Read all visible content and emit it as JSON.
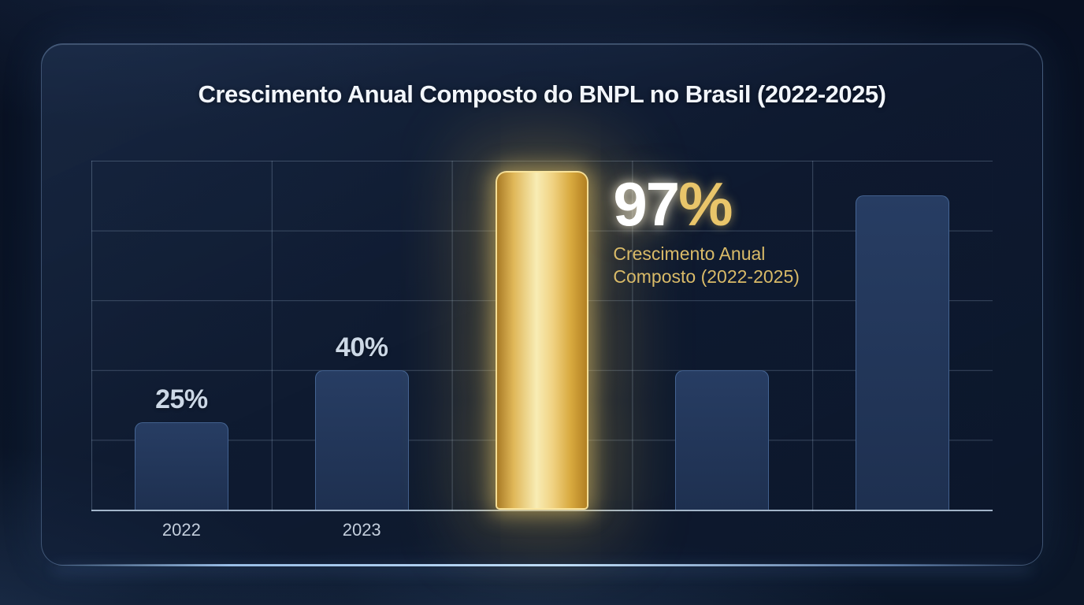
{
  "chart_data": {
    "type": "bar",
    "title": "Crescimento Anual Composto do BNPL no Brasil (2022-2025)",
    "categories": [
      "2022",
      "2023",
      "",
      "",
      ""
    ],
    "values": [
      25,
      40,
      97,
      40,
      90
    ],
    "value_labels": [
      "25%",
      "40%",
      "",
      "",
      ""
    ],
    "highlight_index": 2,
    "ylim": [
      0,
      100
    ],
    "grid": {
      "horizontal_step_pct": 20,
      "vertical_step_pct": 20,
      "visible": true
    },
    "legend_position": "none",
    "annotation": {
      "value_number": "97",
      "value_suffix": "%",
      "subtext": "Crescimento Anual Composto (2022-2025)"
    },
    "colors": {
      "highlight_gold": "#e9c363",
      "bar_navy": "#22375a",
      "background_navy": "#0a1424",
      "card_border_blue": "#8eb2e0",
      "value_label_light": "#ccd8e6",
      "annotation_gold": "#d9ba68"
    }
  }
}
